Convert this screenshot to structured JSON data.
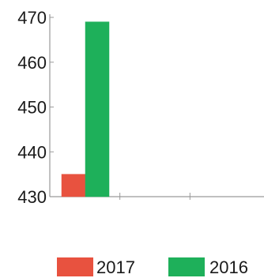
{
  "chart_data": {
    "type": "bar",
    "categories": [
      "",
      "",
      ""
    ],
    "series": [
      {
        "name": "2017",
        "values": [
          435,
          null,
          null
        ],
        "color": "#e8523f"
      },
      {
        "name": "2016",
        "values": [
          469,
          null,
          null
        ],
        "color": "#1eb05a"
      }
    ],
    "ylim": [
      430,
      470
    ],
    "yticks": [
      430,
      440,
      450,
      460,
      470
    ],
    "grid": false,
    "legend_position": "bottom-center",
    "axis_color": "#9a9a9a"
  }
}
